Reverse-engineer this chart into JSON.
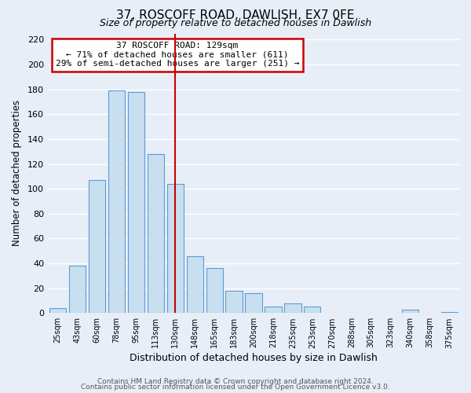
{
  "title": "37, ROSCOFF ROAD, DAWLISH, EX7 0FE",
  "subtitle": "Size of property relative to detached houses in Dawlish",
  "xlabel": "Distribution of detached houses by size in Dawlish",
  "ylabel": "Number of detached properties",
  "bar_labels": [
    "25sqm",
    "43sqm",
    "60sqm",
    "78sqm",
    "95sqm",
    "113sqm",
    "130sqm",
    "148sqm",
    "165sqm",
    "183sqm",
    "200sqm",
    "218sqm",
    "235sqm",
    "253sqm",
    "270sqm",
    "288sqm",
    "305sqm",
    "323sqm",
    "340sqm",
    "358sqm",
    "375sqm"
  ],
  "bar_values": [
    4,
    38,
    107,
    179,
    178,
    128,
    104,
    46,
    36,
    18,
    16,
    5,
    8,
    5,
    0,
    0,
    0,
    0,
    3,
    0,
    1
  ],
  "bar_color": "#c8dff0",
  "bar_edge_color": "#5b9bd5",
  "highlight_bar_index": 6,
  "highlight_line_color": "#cc0000",
  "annotation_title": "37 ROSCOFF ROAD: 129sqm",
  "annotation_line1": "← 71% of detached houses are smaller (611)",
  "annotation_line2": "29% of semi-detached houses are larger (251) →",
  "annotation_box_color": "#ffffff",
  "annotation_box_edge": "#cc0000",
  "ylim": [
    0,
    225
  ],
  "yticks": [
    0,
    20,
    40,
    60,
    80,
    100,
    120,
    140,
    160,
    180,
    200,
    220
  ],
  "footer1": "Contains HM Land Registry data © Crown copyright and database right 2024.",
  "footer2": "Contains public sector information licensed under the Open Government Licence v3.0.",
  "bg_color": "#e8eef8",
  "grid_color": "#ffffff"
}
